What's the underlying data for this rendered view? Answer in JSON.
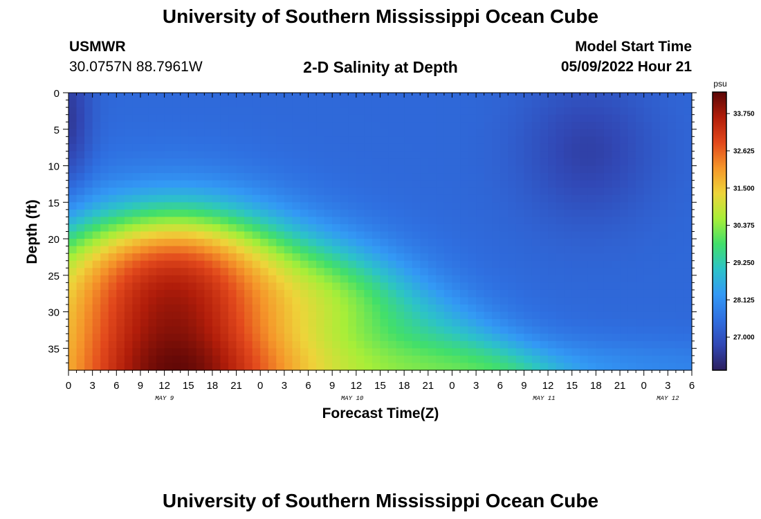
{
  "header": {
    "title": "University of Southern Mississippi Ocean Cube",
    "station_id": "USMWR",
    "coords": "30.0757N  88.7961W",
    "chart_title": "2-D Salinity at Depth",
    "model_label": "Model Start Time",
    "model_date": "05/09/2022 Hour 21"
  },
  "footer": {
    "title": "University of Southern Mississippi Ocean Cube"
  },
  "colors": {
    "scale": [
      "#2c1f5e",
      "#3147b4",
      "#2f6fe0",
      "#3399f5",
      "#2cc3c8",
      "#42df6a",
      "#a8ee38",
      "#eed43a",
      "#f5962a",
      "#e2481c",
      "#b11d0a",
      "#5a0606"
    ]
  },
  "chart_data": {
    "type": "heatmap",
    "title": "2-D Salinity at Depth",
    "xlabel": "Forecast Time(Z)",
    "ylabel": "Depth (ft)",
    "x_ticks": [
      "0",
      "3",
      "6",
      "9",
      "12",
      "15",
      "18",
      "21",
      "0",
      "3",
      "6",
      "9",
      "12",
      "15",
      "18",
      "21",
      "0",
      "3",
      "6",
      "9",
      "12",
      "15",
      "18",
      "21",
      "0",
      "3",
      "6"
    ],
    "x_range_hours": [
      0,
      78
    ],
    "day_labels": [
      {
        "hour": 12,
        "label": "MAY 9"
      },
      {
        "hour": 35.5,
        "label": "MAY 10"
      },
      {
        "hour": 59.5,
        "label": "MAY 11"
      },
      {
        "hour": 75,
        "label": "MAY 12"
      }
    ],
    "y_ticks": [
      0,
      5,
      10,
      15,
      20,
      25,
      30,
      35
    ],
    "y_tick_labels": [
      "0",
      "5",
      "10",
      "15",
      "20",
      "25",
      "30",
      "35"
    ],
    "ylim": [
      0,
      38
    ],
    "colorbar": {
      "unit": "psu",
      "range": [
        26.0,
        34.4
      ],
      "ticks": [
        27.0,
        28.125,
        29.25,
        30.375,
        31.5,
        32.625,
        33.75
      ],
      "tick_labels": [
        "27.000",
        "28.125",
        "29.250",
        "30.375",
        "31.500",
        "32.625",
        "33.750"
      ]
    },
    "grid": false,
    "legend": "right colorbar"
  }
}
